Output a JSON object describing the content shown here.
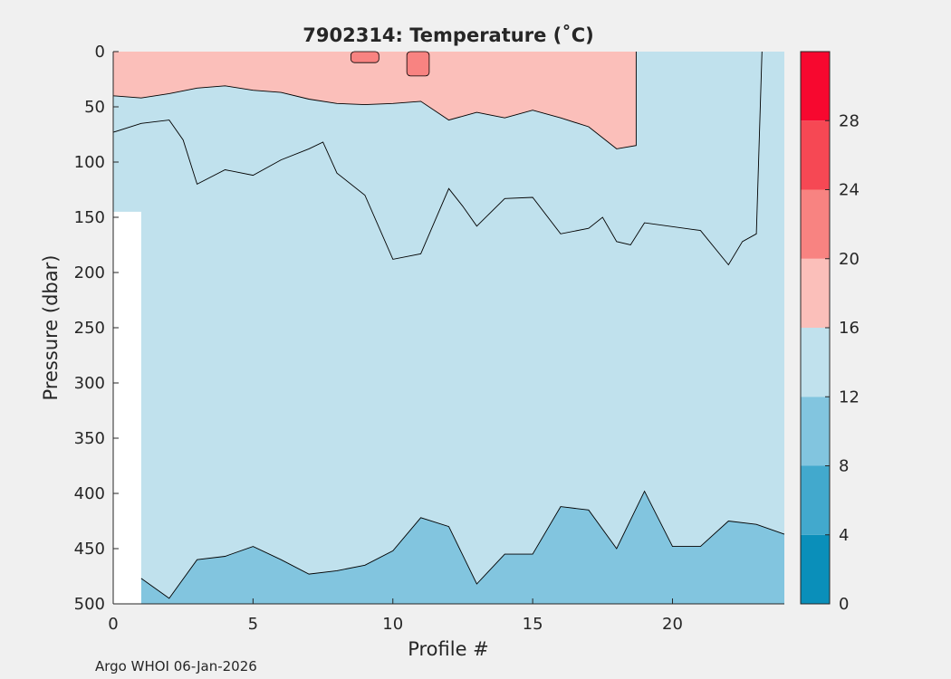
{
  "chart_data": {
    "type": "contour",
    "title": "7902314:  Temperature (˚C)",
    "xlabel": "Profile #",
    "ylabel": "Pressure (dbar)",
    "xlim": [
      0,
      24
    ],
    "ylim": [
      0,
      500
    ],
    "y_reversed": true,
    "x_ticks": [
      "0",
      "5",
      "10",
      "15",
      "20"
    ],
    "y_ticks": [
      "0",
      "50",
      "100",
      "150",
      "200",
      "250",
      "300",
      "350",
      "400",
      "450",
      "500"
    ],
    "colorbar": {
      "range": [
        0,
        32
      ],
      "ticks": [
        "0",
        "4",
        "8",
        "12",
        "16",
        "20",
        "24",
        "28"
      ],
      "levels": [
        {
          "from": 0,
          "to": 4,
          "color": "#0a8fba"
        },
        {
          "from": 4,
          "to": 8,
          "color": "#42a9cd"
        },
        {
          "from": 8,
          "to": 12,
          "color": "#82c5df"
        },
        {
          "from": 12,
          "to": 16,
          "color": "#c0e1ed"
        },
        {
          "from": 16,
          "to": 20,
          "color": "#fbbfba"
        },
        {
          "from": 20,
          "to": 24,
          "color": "#f88381"
        },
        {
          "from": 24,
          "to": 28,
          "color": "#f64854"
        },
        {
          "from": 28,
          "to": 32,
          "color": "#f7082f"
        }
      ]
    },
    "contours": {
      "isotherm_16C": [
        [
          0,
          40
        ],
        [
          1,
          42
        ],
        [
          2,
          38
        ],
        [
          3,
          33
        ],
        [
          4,
          31
        ],
        [
          5,
          35
        ],
        [
          6,
          37
        ],
        [
          7,
          43
        ],
        [
          8,
          47
        ],
        [
          9,
          48
        ],
        [
          10,
          47
        ],
        [
          11,
          45
        ],
        [
          12,
          62
        ],
        [
          13,
          55
        ],
        [
          14,
          60
        ],
        [
          15,
          53
        ],
        [
          16,
          60
        ],
        [
          17,
          68
        ],
        [
          18,
          88
        ],
        [
          18.7,
          85
        ],
        [
          18.7,
          0
        ]
      ],
      "isotherm_12C": [
        [
          0,
          73
        ],
        [
          1,
          65
        ],
        [
          2,
          62
        ],
        [
          2.5,
          80
        ],
        [
          3,
          120
        ],
        [
          4,
          107
        ],
        [
          5,
          112
        ],
        [
          6,
          98
        ],
        [
          7,
          88
        ],
        [
          7.5,
          82
        ],
        [
          8,
          110
        ],
        [
          9,
          130
        ],
        [
          10,
          188
        ],
        [
          11,
          183
        ],
        [
          12,
          124
        ],
        [
          12.5,
          140
        ],
        [
          13,
          158
        ],
        [
          14,
          133
        ],
        [
          15,
          132
        ],
        [
          16,
          165
        ],
        [
          17,
          160
        ],
        [
          17.5,
          150
        ],
        [
          18,
          172
        ],
        [
          18.5,
          175
        ],
        [
          19,
          155
        ],
        [
          21,
          162
        ],
        [
          22,
          193
        ],
        [
          22.5,
          172
        ],
        [
          23,
          165
        ],
        [
          23.2,
          0
        ]
      ],
      "isotherm_8C": [
        [
          1,
          477
        ],
        [
          2,
          495
        ],
        [
          3,
          460
        ],
        [
          4,
          457
        ],
        [
          5,
          448
        ],
        [
          6,
          460
        ],
        [
          7,
          473
        ],
        [
          8,
          470
        ],
        [
          9,
          465
        ],
        [
          10,
          452
        ],
        [
          11,
          422
        ],
        [
          12,
          430
        ],
        [
          13,
          482
        ],
        [
          14,
          455
        ],
        [
          15,
          455
        ],
        [
          16,
          412
        ],
        [
          17,
          415
        ],
        [
          18,
          450
        ],
        [
          19,
          398
        ],
        [
          20,
          448
        ],
        [
          21,
          448
        ],
        [
          22,
          425
        ],
        [
          23,
          428
        ],
        [
          24,
          437
        ]
      ]
    },
    "warm_patches": [
      {
        "x_from": 8.5,
        "x_to": 9.5,
        "p_from": 0,
        "p_to": 10,
        "level": "20-24"
      },
      {
        "x_from": 10.5,
        "x_to": 11.3,
        "p_from": 0,
        "p_to": 22,
        "level": "20-24"
      }
    ],
    "missing_regions": [
      {
        "x_from": 0,
        "x_to": 1,
        "p_from": 145,
        "p_to": 500
      }
    ]
  },
  "footer": {
    "credit": "Argo WHOI 06-Jan-2026"
  }
}
